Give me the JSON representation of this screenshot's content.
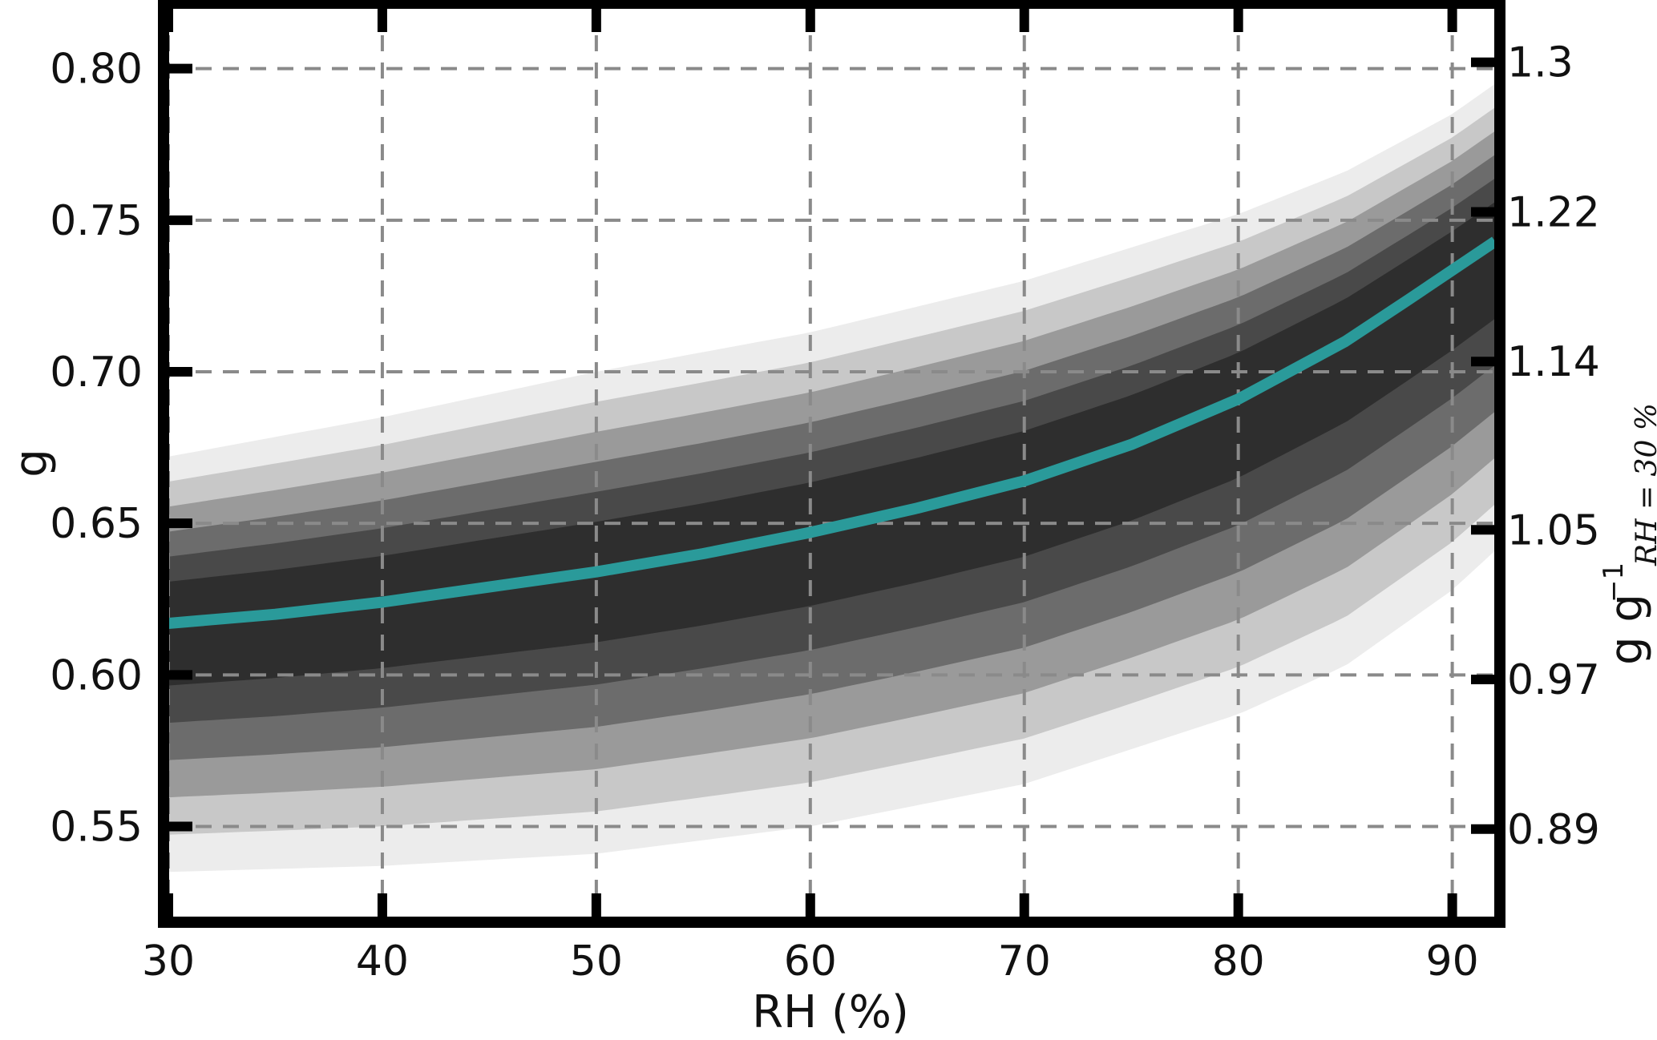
{
  "chart_data": {
    "type": "area",
    "xlabel": "RH (%)",
    "ylabel": "g",
    "ylabel_right": "g g",
    "ylabel_right_sup": "−1",
    "ylabel_right_sub": "RH = 30 %",
    "xlim": [
      30,
      92
    ],
    "ylim": [
      0.52,
      0.82
    ],
    "x_ticks": [
      30,
      40,
      50,
      60,
      70,
      80,
      90
    ],
    "y_ticks": [
      0.55,
      0.6,
      0.65,
      0.7,
      0.75,
      0.8
    ],
    "x_tick_labels": [
      "30",
      "40",
      "50",
      "60",
      "70",
      "80",
      "90"
    ],
    "y_tick_labels": [
      "0.55",
      "0.60",
      "0.65",
      "0.70",
      "0.75",
      "0.80"
    ],
    "right_ticks": [
      0.89,
      0.97,
      1.05,
      1.14,
      1.22,
      1.3
    ],
    "right_tick_labels": [
      "0.89",
      "0.97",
      "1.05",
      "1.14",
      "1.22",
      "1.3"
    ],
    "right_axis_reference_g": 0.617,
    "grid": true,
    "series": [
      {
        "kind": "line",
        "color": "#2a9a9a",
        "x": [
          30,
          35,
          40,
          45,
          50,
          55,
          60,
          65,
          70,
          75,
          80,
          85,
          88,
          92
        ],
        "y": [
          0.617,
          0.62,
          0.624,
          0.629,
          0.634,
          0.64,
          0.647,
          0.655,
          0.664,
          0.676,
          0.691,
          0.71,
          0.724,
          0.743
        ]
      },
      {
        "kind": "uncertainty_band",
        "color": "#000000",
        "x": [
          30,
          40,
          50,
          60,
          70,
          80,
          85,
          90,
          92
        ],
        "upper": [
          0.672,
          0.685,
          0.7,
          0.713,
          0.73,
          0.752,
          0.766,
          0.785,
          0.795
        ],
        "lower": [
          0.535,
          0.537,
          0.541,
          0.55,
          0.564,
          0.587,
          0.603,
          0.628,
          0.641
        ]
      }
    ]
  }
}
